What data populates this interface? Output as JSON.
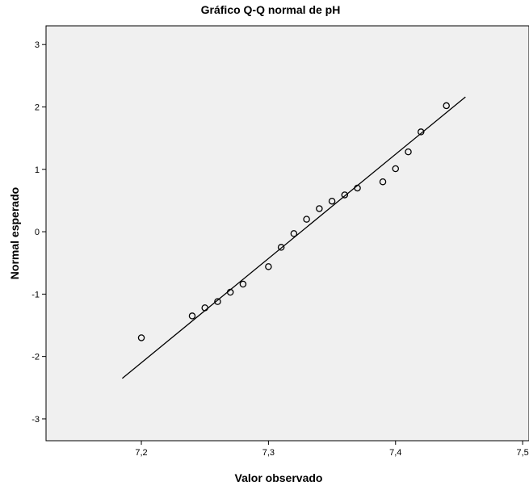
{
  "chart_data": {
    "type": "scatter",
    "title": "Gráfico Q-Q normal de pH",
    "xlabel": "Valor observado",
    "ylabel": "Normal esperado",
    "xlim": [
      7.125,
      7.505
    ],
    "ylim": [
      -3.35,
      3.3
    ],
    "x_ticks": [
      {
        "value": 7.2,
        "label": "7,2"
      },
      {
        "value": 7.3,
        "label": "7,3"
      },
      {
        "value": 7.4,
        "label": "7,4"
      },
      {
        "value": 7.5,
        "label": "7,5"
      }
    ],
    "y_ticks": [
      {
        "value": 3,
        "label": "3"
      },
      {
        "value": 2,
        "label": "2"
      },
      {
        "value": 1,
        "label": "1"
      },
      {
        "value": 0,
        "label": "0"
      },
      {
        "value": -1,
        "label": "-1"
      },
      {
        "value": -2,
        "label": "-2"
      },
      {
        "value": -3,
        "label": "-3"
      }
    ],
    "grid": false,
    "legend": "none",
    "points": [
      {
        "x": 7.2,
        "y": -1.7
      },
      {
        "x": 7.24,
        "y": -1.35
      },
      {
        "x": 7.25,
        "y": -1.22
      },
      {
        "x": 7.26,
        "y": -1.12
      },
      {
        "x": 7.27,
        "y": -0.97
      },
      {
        "x": 7.28,
        "y": -0.84
      },
      {
        "x": 7.3,
        "y": -0.56
      },
      {
        "x": 7.31,
        "y": -0.25
      },
      {
        "x": 7.32,
        "y": -0.03
      },
      {
        "x": 7.33,
        "y": 0.2
      },
      {
        "x": 7.34,
        "y": 0.37
      },
      {
        "x": 7.35,
        "y": 0.49
      },
      {
        "x": 7.36,
        "y": 0.59
      },
      {
        "x": 7.37,
        "y": 0.7
      },
      {
        "x": 7.39,
        "y": 0.8
      },
      {
        "x": 7.4,
        "y": 1.01
      },
      {
        "x": 7.41,
        "y": 1.28
      },
      {
        "x": 7.42,
        "y": 1.6
      },
      {
        "x": 7.44,
        "y": 2.02
      }
    ],
    "reference_line": {
      "x": [
        7.185,
        7.455
      ],
      "y": [
        -2.35,
        2.16
      ]
    },
    "colors": {
      "plot_background": "#f0f0f0",
      "marker": "#000000",
      "line": "#000000"
    }
  }
}
